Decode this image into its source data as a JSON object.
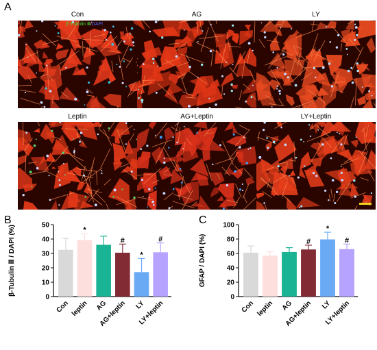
{
  "panels": {
    "a_label": "A",
    "b_label": "B",
    "c_label": "C"
  },
  "micrographs": [
    {
      "title": "Con",
      "fiber_color": "#e53a1c",
      "dot_color": "#39c0e0"
    },
    {
      "title": "AG",
      "fiber_color": "#e23616",
      "dot_color": "#9ae8f0"
    },
    {
      "title": "LY",
      "fiber_color": "#e84a20",
      "dot_color": "#b0e0ff"
    },
    {
      "title": "Leptin",
      "fiber_color": "#e03818",
      "dot_color": "#59d070"
    },
    {
      "title": "AG+Leptin",
      "fiber_color": "#d8301a",
      "dot_color": "#3fa0ff"
    },
    {
      "title": "LY+Leptin",
      "fiber_color": "#e23c1a",
      "dot_color": "#a0e8ff"
    }
  ],
  "stain_legend": {
    "marker1": "β-Tubulin Ⅲ",
    "marker1_color": "#3cdc3c",
    "separator": "/",
    "marker2": "DAPI",
    "marker2_color": "#4a6cff"
  },
  "chart_data": [
    {
      "type": "bar",
      "panel": "B",
      "ylabel": "β-Tubulin Ⅲ / DAPI (%)",
      "ylim": [
        0,
        50
      ],
      "yticks": [
        0,
        10,
        20,
        30,
        40,
        50
      ],
      "categories": [
        "Con",
        "leptin",
        "AG",
        "AG+leptin",
        "LY",
        "LY+leptin"
      ],
      "values": [
        32.5,
        39.3,
        36.0,
        30.5,
        17.0,
        30.8
      ],
      "errors": [
        8.0,
        4.5,
        6.0,
        6.0,
        9.5,
        6.5
      ],
      "bar_colors": [
        "#d9d9d9",
        "#fde0dd",
        "#1ab394",
        "#832b34",
        "#6aaaf5",
        "#b5a3ff"
      ],
      "annotations": [
        "",
        "*",
        "",
        "#",
        "*",
        "#"
      ]
    },
    {
      "type": "bar",
      "panel": "C",
      "ylabel": "GFAP / DAPI (%)",
      "ylim": [
        0,
        100
      ],
      "yticks": [
        0,
        20,
        40,
        60,
        80,
        100
      ],
      "categories": [
        "Con",
        "leptin",
        "AG",
        "AG+leptin",
        "LY",
        "LY+leptin"
      ],
      "values": [
        61.0,
        57.0,
        62.0,
        65.5,
        79.5,
        66.0
      ],
      "errors": [
        9.5,
        5.5,
        6.0,
        6.0,
        10.0,
        7.0
      ],
      "bar_colors": [
        "#d9d9d9",
        "#fde0dd",
        "#1ab394",
        "#832b34",
        "#6aaaf5",
        "#b5a3ff"
      ],
      "annotations": [
        "",
        "",
        "",
        "#",
        "*",
        "#"
      ]
    }
  ]
}
